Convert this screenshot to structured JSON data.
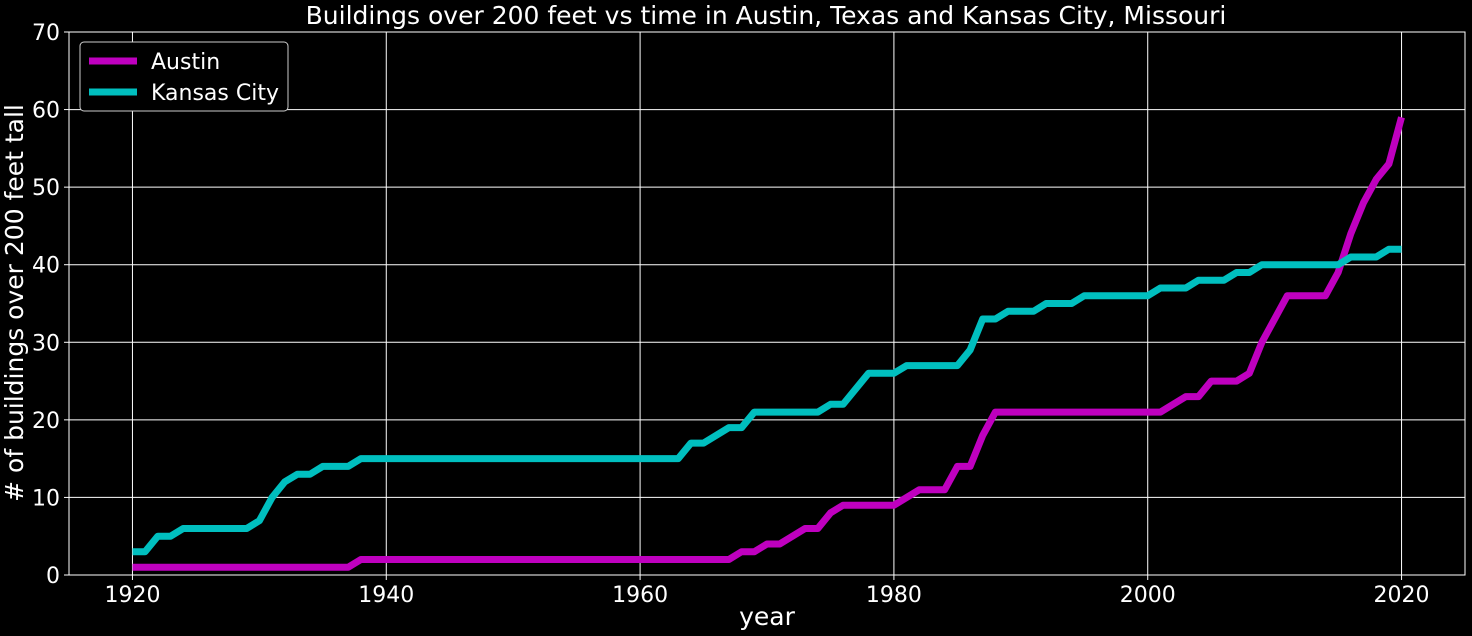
{
  "chart_data": {
    "type": "line",
    "title": "Buildings over 200 feet vs time in Austin, Texas and Kansas City, Missouri",
    "xlabel": "year",
    "ylabel": "# of buildings over 200 feet tall",
    "xlim": [
      1915,
      2025
    ],
    "ylim": [
      0,
      70
    ],
    "x_ticks": [
      "1920",
      "1940",
      "1960",
      "1980",
      "2000",
      "2020"
    ],
    "y_ticks": [
      "0",
      "10",
      "20",
      "30",
      "40",
      "50",
      "60",
      "70"
    ],
    "grid": true,
    "background": "#000000",
    "legend_position": "top-left",
    "series": [
      {
        "name": "Austin",
        "color": "#bf00bf",
        "points": [
          [
            1920,
            1
          ],
          [
            1936,
            1
          ],
          [
            1937,
            1
          ],
          [
            1938,
            2
          ],
          [
            1966,
            2
          ],
          [
            1967,
            2
          ],
          [
            1968,
            3
          ],
          [
            1969,
            3
          ],
          [
            1970,
            4
          ],
          [
            1971,
            4
          ],
          [
            1973,
            6
          ],
          [
            1974,
            6
          ],
          [
            1975,
            8
          ],
          [
            1976,
            9
          ],
          [
            1980,
            9
          ],
          [
            1982,
            11
          ],
          [
            1984,
            11
          ],
          [
            1985,
            14
          ],
          [
            1986,
            14
          ],
          [
            1987,
            18
          ],
          [
            1988,
            21
          ],
          [
            2001,
            21
          ],
          [
            2003,
            23
          ],
          [
            2004,
            23
          ],
          [
            2005,
            25
          ],
          [
            2007,
            25
          ],
          [
            2008,
            26
          ],
          [
            2009,
            30
          ],
          [
            2011,
            36
          ],
          [
            2014,
            36
          ],
          [
            2015,
            39
          ],
          [
            2016,
            44
          ],
          [
            2017,
            48
          ],
          [
            2018,
            51
          ],
          [
            2019,
            53
          ],
          [
            2020,
            59
          ]
        ]
      },
      {
        "name": "Kansas City",
        "color": "#00bfbf",
        "points": [
          [
            1920,
            3
          ],
          [
            1921,
            3
          ],
          [
            1922,
            5
          ],
          [
            1923,
            5
          ],
          [
            1924,
            6
          ],
          [
            1929,
            6
          ],
          [
            1930,
            7
          ],
          [
            1931,
            10
          ],
          [
            1932,
            12
          ],
          [
            1933,
            13
          ],
          [
            1934,
            13
          ],
          [
            1935,
            14
          ],
          [
            1937,
            14
          ],
          [
            1938,
            15
          ],
          [
            1963,
            15
          ],
          [
            1964,
            17
          ],
          [
            1965,
            17
          ],
          [
            1966,
            18
          ],
          [
            1967,
            19
          ],
          [
            1968,
            19
          ],
          [
            1969,
            21
          ],
          [
            1974,
            21
          ],
          [
            1975,
            22
          ],
          [
            1976,
            22
          ],
          [
            1978,
            26
          ],
          [
            1980,
            26
          ],
          [
            1981,
            27
          ],
          [
            1985,
            27
          ],
          [
            1986,
            29
          ],
          [
            1987,
            33
          ],
          [
            1988,
            33
          ],
          [
            1989,
            34
          ],
          [
            1991,
            34
          ],
          [
            1992,
            35
          ],
          [
            1994,
            35
          ],
          [
            1995,
            36
          ],
          [
            2000,
            36
          ],
          [
            2001,
            37
          ],
          [
            2003,
            37
          ],
          [
            2004,
            38
          ],
          [
            2006,
            38
          ],
          [
            2007,
            39
          ],
          [
            2008,
            39
          ],
          [
            2009,
            40
          ],
          [
            2015,
            40
          ],
          [
            2016,
            41
          ],
          [
            2018,
            41
          ],
          [
            2019,
            42
          ],
          [
            2020,
            42
          ]
        ]
      }
    ]
  }
}
